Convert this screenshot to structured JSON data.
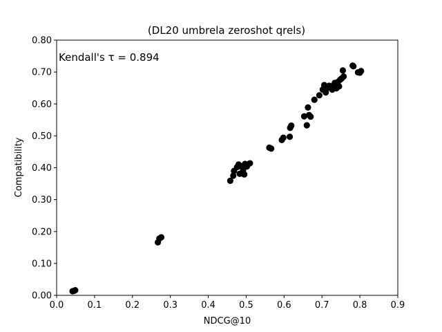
{
  "chart_data": {
    "type": "scatter",
    "title": "(DL20 umbrela zeroshot qrels)",
    "xlabel": "NDCG@10",
    "ylabel": "Compatibility",
    "xlim": [
      0.0,
      0.9
    ],
    "ylim": [
      0.0,
      0.8
    ],
    "xticks": [
      "0.0",
      "0.1",
      "0.2",
      "0.3",
      "0.4",
      "0.5",
      "0.6",
      "0.7",
      "0.8",
      "0.9"
    ],
    "yticks": [
      "0.00",
      "0.10",
      "0.20",
      "0.30",
      "0.40",
      "0.50",
      "0.60",
      "0.70",
      "0.80"
    ],
    "grid": false,
    "annotation": "Kendall's τ = 0.894",
    "marker_color": "#000000",
    "points": [
      {
        "x": 0.042,
        "y": 0.013
      },
      {
        "x": 0.046,
        "y": 0.014
      },
      {
        "x": 0.049,
        "y": 0.016
      },
      {
        "x": 0.267,
        "y": 0.166
      },
      {
        "x": 0.271,
        "y": 0.178
      },
      {
        "x": 0.276,
        "y": 0.182
      },
      {
        "x": 0.458,
        "y": 0.359
      },
      {
        "x": 0.466,
        "y": 0.375
      },
      {
        "x": 0.468,
        "y": 0.39
      },
      {
        "x": 0.476,
        "y": 0.402
      },
      {
        "x": 0.48,
        "y": 0.41
      },
      {
        "x": 0.483,
        "y": 0.381
      },
      {
        "x": 0.487,
        "y": 0.405
      },
      {
        "x": 0.492,
        "y": 0.393
      },
      {
        "x": 0.495,
        "y": 0.379
      },
      {
        "x": 0.497,
        "y": 0.412
      },
      {
        "x": 0.502,
        "y": 0.404
      },
      {
        "x": 0.51,
        "y": 0.414
      },
      {
        "x": 0.561,
        "y": 0.463
      },
      {
        "x": 0.566,
        "y": 0.46
      },
      {
        "x": 0.594,
        "y": 0.487
      },
      {
        "x": 0.598,
        "y": 0.494
      },
      {
        "x": 0.615,
        "y": 0.497
      },
      {
        "x": 0.616,
        "y": 0.525
      },
      {
        "x": 0.619,
        "y": 0.532
      },
      {
        "x": 0.653,
        "y": 0.561
      },
      {
        "x": 0.66,
        "y": 0.533
      },
      {
        "x": 0.663,
        "y": 0.589
      },
      {
        "x": 0.666,
        "y": 0.565
      },
      {
        "x": 0.67,
        "y": 0.56
      },
      {
        "x": 0.68,
        "y": 0.613
      },
      {
        "x": 0.693,
        "y": 0.627
      },
      {
        "x": 0.702,
        "y": 0.645
      },
      {
        "x": 0.706,
        "y": 0.659
      },
      {
        "x": 0.71,
        "y": 0.636
      },
      {
        "x": 0.714,
        "y": 0.65
      },
      {
        "x": 0.719,
        "y": 0.657
      },
      {
        "x": 0.723,
        "y": 0.653
      },
      {
        "x": 0.727,
        "y": 0.645
      },
      {
        "x": 0.731,
        "y": 0.659
      },
      {
        "x": 0.734,
        "y": 0.666
      },
      {
        "x": 0.738,
        "y": 0.649
      },
      {
        "x": 0.742,
        "y": 0.669
      },
      {
        "x": 0.745,
        "y": 0.655
      },
      {
        "x": 0.748,
        "y": 0.676
      },
      {
        "x": 0.752,
        "y": 0.68
      },
      {
        "x": 0.755,
        "y": 0.705
      },
      {
        "x": 0.757,
        "y": 0.686
      },
      {
        "x": 0.781,
        "y": 0.72
      },
      {
        "x": 0.783,
        "y": 0.718
      },
      {
        "x": 0.795,
        "y": 0.699
      },
      {
        "x": 0.8,
        "y": 0.698
      },
      {
        "x": 0.803,
        "y": 0.703
      }
    ]
  }
}
